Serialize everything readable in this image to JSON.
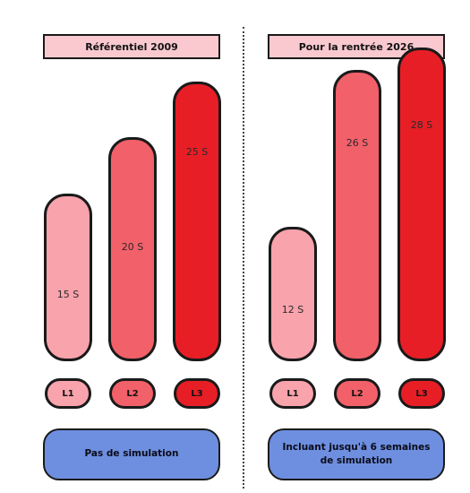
{
  "chart_data": [
    {
      "type": "bar",
      "title": "Référentiel 2009",
      "categories": [
        "L1",
        "L2",
        "L3"
      ],
      "values": [
        15,
        20,
        25
      ],
      "value_labels": [
        "15 S",
        "20 S",
        "25 S"
      ],
      "ylim": [
        0,
        30
      ],
      "colors": [
        "#f9a3ac",
        "#f26069",
        "#e81e26"
      ],
      "note": "Pas de simulation"
    },
    {
      "type": "bar",
      "title": "Pour la rentrée 2026",
      "categories": [
        "L1",
        "L2",
        "L3"
      ],
      "values": [
        12,
        26,
        28
      ],
      "value_labels": [
        "12 S",
        "26 S",
        "28 S"
      ],
      "ylim": [
        0,
        30
      ],
      "colors": [
        "#f9a3ac",
        "#f26069",
        "#e81e26"
      ],
      "note": "Incluant jusqu'à 6 semaines de simulation"
    }
  ]
}
